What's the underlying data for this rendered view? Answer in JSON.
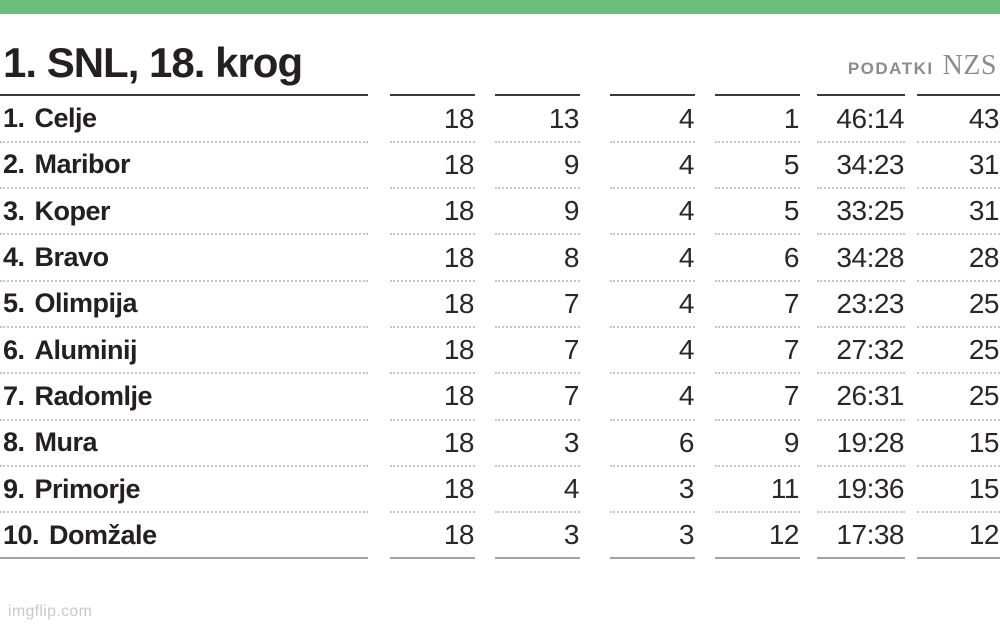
{
  "page": {
    "title": "1. SNL, 18. krog",
    "source_label": "PODATKI",
    "source_org": "NZS",
    "watermark": "imgflip.com"
  },
  "colors": {
    "accent_green": "#6dbd7b",
    "text_dark": "#242021",
    "source_gray": "#8b8b93",
    "rule_dark": "#3a3a3a",
    "rule_light": "#a2a2a2",
    "dotted_gray": "#c6c6c6",
    "watermark_gray": "#c9c9c9"
  },
  "table": {
    "rows": [
      {
        "rank_label": "1.",
        "team": "Celje",
        "games": "18",
        "wins": "13",
        "draws": "4",
        "losses": "1",
        "goals": "46:14",
        "points": "43"
      },
      {
        "rank_label": "2.",
        "team": "Maribor",
        "games": "18",
        "wins": "9",
        "draws": "4",
        "losses": "5",
        "goals": "34:23",
        "points": "31"
      },
      {
        "rank_label": "3.",
        "team": "Koper",
        "games": "18",
        "wins": "9",
        "draws": "4",
        "losses": "5",
        "goals": "33:25",
        "points": "31"
      },
      {
        "rank_label": "4.",
        "team": "Bravo",
        "games": "18",
        "wins": "8",
        "draws": "4",
        "losses": "6",
        "goals": "34:28",
        "points": "28"
      },
      {
        "rank_label": "5.",
        "team": "Olimpija",
        "games": "18",
        "wins": "7",
        "draws": "4",
        "losses": "7",
        "goals": "23:23",
        "points": "25"
      },
      {
        "rank_label": "6.",
        "team": "Aluminij",
        "games": "18",
        "wins": "7",
        "draws": "4",
        "losses": "7",
        "goals": "27:32",
        "points": "25"
      },
      {
        "rank_label": "7.",
        "team": "Radomlje",
        "games": "18",
        "wins": "7",
        "draws": "4",
        "losses": "7",
        "goals": "26:31",
        "points": "25"
      },
      {
        "rank_label": "8.",
        "team": "Mura",
        "games": "18",
        "wins": "3",
        "draws": "6",
        "losses": "9",
        "goals": "19:28",
        "points": "15"
      },
      {
        "rank_label": "9.",
        "team": "Primorje",
        "games": "18",
        "wins": "4",
        "draws": "3",
        "losses": "11",
        "goals": "19:36",
        "points": "15"
      },
      {
        "rank_label": "10.",
        "team": "Domžale",
        "games": "18",
        "wins": "3",
        "draws": "3",
        "losses": "12",
        "goals": "17:38",
        "points": "12"
      }
    ]
  },
  "chart_data": {
    "type": "table",
    "title": "1. SNL, 18. krog",
    "source": "PODATKI NZS",
    "columns": [
      "rank",
      "team",
      "played",
      "wins",
      "draws",
      "losses",
      "goals_for_against",
      "points"
    ],
    "rows": [
      [
        1,
        "Celje",
        18,
        13,
        4,
        1,
        "46:14",
        43
      ],
      [
        2,
        "Maribor",
        18,
        9,
        4,
        5,
        "34:23",
        31
      ],
      [
        3,
        "Koper",
        18,
        9,
        4,
        5,
        "33:25",
        31
      ],
      [
        4,
        "Bravo",
        18,
        8,
        4,
        6,
        "34:28",
        28
      ],
      [
        5,
        "Olimpija",
        18,
        7,
        4,
        7,
        "23:23",
        25
      ],
      [
        6,
        "Aluminij",
        18,
        7,
        4,
        7,
        "27:32",
        25
      ],
      [
        7,
        "Radomlje",
        18,
        7,
        4,
        7,
        "26:31",
        25
      ],
      [
        8,
        "Mura",
        18,
        3,
        6,
        9,
        "19:28",
        15
      ],
      [
        9,
        "Primorje",
        18,
        4,
        3,
        11,
        "19:36",
        15
      ],
      [
        10,
        "Domžale",
        18,
        3,
        3,
        12,
        "17:38",
        12
      ]
    ],
    "layout_hints": {
      "grid": "dotted row separators, segmented column rules",
      "numeric_columns_alignment": "right"
    }
  }
}
